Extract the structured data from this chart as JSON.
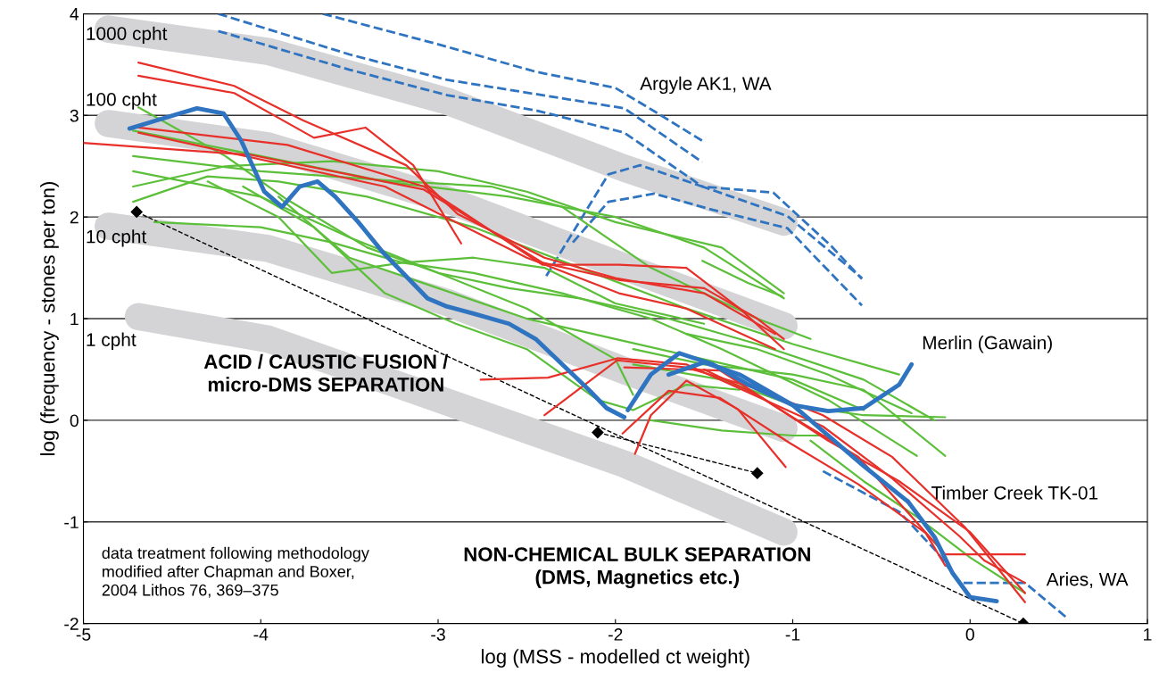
{
  "chart_data": {
    "type": "line",
    "xlabel": "log (MSS - modelled ct weight)",
    "ylabel": "log (frequency - stones per ton)",
    "xlim": [
      -5,
      1
    ],
    "xticks": [
      -5,
      -4,
      -3,
      -2,
      -1,
      0,
      1
    ],
    "ylim": [
      -2,
      4
    ],
    "yticks": [
      -2,
      -1,
      0,
      1,
      2,
      3,
      4
    ],
    "grid": "y",
    "legend": false,
    "series": [
      {
        "color": "#d4d4d6",
        "x": [
          -4.86,
          -3.96,
          -2.95,
          -1.95,
          -1.05
        ],
        "values": [
          3.85,
          3.63,
          3.14,
          2.48,
          1.95
        ]
      },
      {
        "color": "#d4d4d6",
        "x": [
          -4.86,
          -3.96,
          -2.95,
          -1.95,
          -1.05
        ],
        "values": [
          2.92,
          2.7,
          2.17,
          1.51,
          0.93
        ]
      },
      {
        "color": "#d4d4d6",
        "x": [
          -4.86,
          -3.96,
          -2.95,
          -1.95,
          -1.05
        ],
        "values": [
          1.91,
          1.69,
          1.16,
          0.49,
          -0.08
        ]
      },
      {
        "color": "#d4d4d6",
        "x": [
          -4.69,
          -3.96,
          -2.95,
          -1.95,
          -1.05
        ],
        "values": [
          1.02,
          0.8,
          0.18,
          -0.43,
          -1.1
        ]
      },
      {
        "color": "#000000",
        "line_style": "dashed",
        "marker": "diamond",
        "x": [
          -4.7,
          0.3
        ],
        "values": [
          2.05,
          -2.0
        ]
      },
      {
        "color": "#000000",
        "line_style": "dashed",
        "marker": "diamond",
        "x": [
          -2.1,
          -1.2
        ],
        "values": [
          -0.12,
          -0.52
        ]
      },
      {
        "color": "#2f74c0",
        "line_style": "dashed",
        "x": [
          -3.65,
          -3.0,
          -2.45,
          -2.0,
          -1.78,
          -1.51
        ],
        "values": [
          4.0,
          3.7,
          3.43,
          3.27,
          3.04,
          2.75
        ]
      },
      {
        "color": "#2f74c0",
        "line_style": "dashed",
        "x": [
          -4.24,
          -3.5,
          -2.95,
          -2.45,
          -1.95,
          -1.51
        ],
        "values": [
          4.0,
          3.6,
          3.35,
          3.21,
          3.07,
          2.54
        ]
      },
      {
        "color": "#2f74c0",
        "line_style": "dashed",
        "x": [
          -4.24,
          -3.5,
          -2.95,
          -2.45,
          -1.95,
          -1.51,
          -1.03,
          -0.61
        ],
        "values": [
          3.83,
          3.45,
          3.2,
          3.05,
          2.83,
          2.3,
          2.01,
          1.4
        ]
      },
      {
        "color": "#2f74c0",
        "line_style": "dashed",
        "x": [
          -2.39,
          -2.04,
          -1.86,
          -1.51,
          -1.11,
          -0.78,
          -0.61
        ],
        "values": [
          1.42,
          2.42,
          2.51,
          2.3,
          2.24,
          1.71,
          1.39
        ]
      },
      {
        "color": "#2f74c0",
        "line_style": "dashed",
        "x": [
          -2.24,
          -2.04,
          -1.78,
          -1.45,
          -1.03,
          -0.61
        ],
        "values": [
          1.75,
          2.15,
          2.23,
          2.07,
          1.89,
          1.13
        ]
      },
      {
        "color": "#2f74c0",
        "line_style": "dashed",
        "x": [
          -0.83,
          -0.4,
          -0.19,
          -0.06,
          0.31,
          0.55
        ],
        "values": [
          -0.5,
          -0.9,
          -1.29,
          -1.6,
          -1.6,
          -1.95
        ]
      },
      {
        "color": "#5cbf3a",
        "x": [
          -4.69,
          -4.2,
          -3.85,
          -3.4,
          -3.0,
          -2.5,
          -2.0,
          -1.9
        ],
        "values": [
          3.08,
          2.6,
          2.17,
          1.7,
          1.45,
          1.1,
          0.6,
          0.25
        ]
      },
      {
        "color": "#5cbf3a",
        "x": [
          -4.72,
          -4.0,
          -3.3,
          -2.6,
          -2.0,
          -1.5,
          -1.05
        ],
        "values": [
          2.85,
          2.6,
          2.35,
          2.2,
          2.0,
          1.7,
          1.2
        ]
      },
      {
        "color": "#5cbf3a",
        "x": [
          -4.72,
          -4.0,
          -3.2,
          -2.7,
          -2.3,
          -1.8,
          -1.2,
          -0.9
        ],
        "values": [
          2.6,
          2.45,
          2.35,
          2.3,
          2.1,
          1.5,
          1.0,
          0.8
        ]
      },
      {
        "color": "#5cbf3a",
        "x": [
          -4.72,
          -4.2,
          -3.6,
          -3.0,
          -2.5,
          -2.0,
          -1.4,
          -1.05
        ],
        "values": [
          2.3,
          2.5,
          2.55,
          2.45,
          2.25,
          1.95,
          1.7,
          1.25
        ]
      },
      {
        "color": "#5cbf3a",
        "x": [
          -4.72,
          -4.3,
          -3.9,
          -3.4,
          -2.8,
          -2.2,
          -1.6,
          -1.0,
          -0.4
        ],
        "values": [
          2.15,
          2.4,
          2.35,
          2.2,
          1.9,
          1.5,
          1.1,
          0.75,
          0.45
        ]
      },
      {
        "color": "#5cbf3a",
        "x": [
          -4.72,
          -4.0,
          -3.5,
          -3.0,
          -2.6,
          -2.2,
          -1.7,
          -1.2,
          -0.6,
          -0.2
        ],
        "values": [
          2.45,
          2.2,
          1.8,
          1.45,
          1.3,
          1.2,
          1.0,
          0.75,
          0.4,
          0.0
        ]
      },
      {
        "color": "#5cbf3a",
        "x": [
          -4.6,
          -4.0,
          -3.6,
          -3.2,
          -2.8,
          -2.3,
          -1.8,
          -1.4,
          -0.8,
          -0.3
        ],
        "values": [
          1.95,
          1.9,
          1.75,
          1.55,
          1.45,
          1.25,
          1.0,
          0.7,
          0.2,
          -0.35
        ]
      },
      {
        "color": "#5cbf3a",
        "x": [
          -4.3,
          -3.9,
          -3.6,
          -3.2,
          -2.8,
          -2.4,
          -2.0,
          -1.5
        ],
        "values": [
          2.35,
          2.0,
          1.45,
          1.55,
          1.6,
          1.5,
          1.15,
          0.95
        ]
      },
      {
        "color": "#5cbf3a",
        "x": [
          -4.1,
          -3.7,
          -3.3,
          -2.9,
          -2.5,
          -2.1,
          -1.9,
          -1.6,
          -1.3
        ],
        "values": [
          2.3,
          1.9,
          1.25,
          0.95,
          0.7,
          0.2,
          0.1,
          0.35,
          0.3
        ]
      },
      {
        "color": "#5cbf3a",
        "x": [
          -3.9,
          -3.5,
          -3.0,
          -2.5,
          -2.0,
          -1.5,
          -1.0,
          -0.6
        ],
        "values": [
          2.2,
          1.6,
          1.3,
          1.0,
          0.8,
          0.6,
          0.4,
          0.1
        ]
      },
      {
        "color": "#5cbf3a",
        "x": [
          -1.51,
          -1.25,
          -1.06
        ],
        "values": [
          1.57,
          1.35,
          1.22
        ]
      },
      {
        "color": "#5cbf3a",
        "x": [
          -1.9,
          -1.5,
          -1.0,
          -0.6,
          -0.14
        ],
        "values": [
          0.7,
          0.55,
          0.45,
          0.3,
          -0.35
        ]
      },
      {
        "color": "#5cbf3a",
        "x": [
          -1.9,
          -1.4,
          -1.0,
          -0.6,
          -0.14
        ],
        "values": [
          0.55,
          0.4,
          0.15,
          0.05,
          0.03
        ]
      },
      {
        "color": "#5cbf3a",
        "x": [
          -1.6,
          -1.2,
          -0.8,
          -0.33
        ],
        "values": [
          0.85,
          0.7,
          0.45,
          0.07
        ]
      },
      {
        "color": "#5cbf3a",
        "x": [
          -1.8,
          -1.4,
          -1.0,
          -0.8
        ],
        "values": [
          0.0,
          -0.1,
          -0.15,
          -0.15
        ]
      },
      {
        "color": "#5cbf3a",
        "x": [
          -0.9,
          -0.6,
          -0.3,
          0.0,
          0.31
        ],
        "values": [
          -0.2,
          -0.6,
          -0.95,
          -1.35,
          -1.7
        ]
      },
      {
        "color": "#e8302a",
        "x": [
          -4.69,
          -4.15,
          -3.76,
          -3.18,
          -2.89,
          -2.4,
          -2.0,
          -1.5,
          -1.1
        ],
        "values": [
          3.52,
          3.29,
          2.95,
          2.51,
          2.03,
          1.6,
          1.4,
          1.25,
          0.85
        ]
      },
      {
        "color": "#e8302a",
        "x": [
          -4.69,
          -4.15,
          -3.7,
          -3.41,
          -3.14,
          -2.87
        ],
        "values": [
          3.39,
          3.22,
          2.78,
          2.88,
          2.51,
          1.74
        ]
      },
      {
        "color": "#e8302a",
        "x": [
          -5.0,
          -4.05,
          -3.08,
          -2.41,
          -1.98,
          -1.5,
          -1.2,
          -1.05
        ],
        "values": [
          2.73,
          2.61,
          2.27,
          1.55,
          1.38,
          1.3,
          1.0,
          0.8
        ]
      },
      {
        "color": "#e8302a",
        "x": [
          -4.69,
          -3.85,
          -3.08,
          -2.41,
          -1.98,
          -1.6,
          -1.3,
          -1.05
        ],
        "values": [
          2.88,
          2.71,
          2.3,
          1.53,
          1.53,
          1.5,
          1.1,
          0.7
        ]
      },
      {
        "color": "#e8302a",
        "x": [
          -4.69,
          -3.3,
          -2.5,
          -1.98,
          -1.6,
          -1.1
        ],
        "values": [
          2.83,
          2.3,
          1.6,
          1.25,
          1.1,
          0.7
        ]
      },
      {
        "color": "#e8302a",
        "x": [
          -2.76,
          -2.38,
          -1.99,
          -1.6,
          -1.22,
          -0.83,
          -0.44,
          -0.06,
          0.08,
          0.31
        ],
        "values": [
          0.4,
          0.42,
          0.61,
          0.55,
          0.25,
          -0.06,
          -0.57,
          -1.14,
          -1.38,
          -1.6
        ]
      },
      {
        "color": "#e8302a",
        "x": [
          -2.4,
          -1.99,
          -1.6,
          -1.22,
          -0.83,
          -0.44,
          -0.03,
          0.31
        ],
        "values": [
          0.05,
          0.59,
          0.52,
          0.32,
          0.05,
          -0.36,
          -1.05,
          -1.79
        ]
      },
      {
        "color": "#e8302a",
        "x": [
          -1.89,
          -1.8,
          -1.6,
          -1.31,
          -1.04
        ],
        "values": [
          -0.33,
          0.05,
          0.39,
          0.11,
          -0.46
        ]
      },
      {
        "color": "#e8302a",
        "x": [
          -1.96,
          -1.7,
          -1.41,
          -1.02,
          -0.63,
          -0.25,
          -0.14
        ],
        "values": [
          -0.13,
          0.29,
          0.22,
          -0.22,
          -0.63,
          -1.11,
          -1.43
        ]
      },
      {
        "color": "#e8302a",
        "x": [
          -1.95,
          -1.41,
          -1.02,
          -0.63,
          -0.14,
          0.15,
          0.31
        ],
        "values": [
          0.52,
          0.49,
          0.05,
          -0.36,
          -1.32,
          -1.32,
          -1.32
        ]
      },
      {
        "color": "#e8302a",
        "x": [
          -1.5,
          -1.2,
          -0.8,
          -0.4,
          0.0,
          0.31
        ],
        "values": [
          0.5,
          0.25,
          -0.2,
          -0.6,
          -1.1,
          -1.7
        ]
      },
      {
        "color": "#2f74c0",
        "x": [
          -4.74,
          -4.59,
          -4.36,
          -4.21,
          -4.11,
          -3.98,
          -3.88,
          -3.78,
          -3.68,
          -3.58,
          -3.45,
          -3.31,
          -3.16,
          -3.06,
          -2.95,
          -2.8,
          -2.6,
          -2.45,
          -2.3,
          -2.15,
          -2.05,
          -1.95
        ],
        "values": [
          2.87,
          2.95,
          3.07,
          3.02,
          2.75,
          2.25,
          2.1,
          2.3,
          2.35,
          2.2,
          1.95,
          1.65,
          1.38,
          1.2,
          1.12,
          1.05,
          0.95,
          0.8,
          0.55,
          0.3,
          0.12,
          0.03
        ]
      },
      {
        "color": "#2f74c0",
        "x": [
          -1.93,
          -1.8,
          -1.64,
          -1.45,
          -1.25,
          -1.0,
          -0.8,
          -0.6,
          -0.4,
          -0.33
        ],
        "values": [
          0.1,
          0.45,
          0.66,
          0.55,
          0.35,
          0.15,
          0.09,
          0.12,
          0.35,
          0.55
        ]
      },
      {
        "color": "#2f74c0",
        "x": [
          -1.7,
          -1.5,
          -1.3,
          -1.0,
          -0.8,
          -0.6,
          -0.35,
          -0.2,
          -0.1,
          0.0,
          0.15
        ],
        "values": [
          0.45,
          0.57,
          0.45,
          0.15,
          -0.15,
          -0.45,
          -0.8,
          -1.15,
          -1.5,
          -1.74,
          -1.78
        ]
      }
    ],
    "annotations": [
      "1000 cpht",
      "100 cpht",
      "10 cpht",
      "1 cpht",
      "Argyle AK1, WA",
      "Merlin (Gawain)",
      {
        "text": "Timber Creek TK-01",
        "x": -0.22,
        "y": -0.73
      },
      "Aries, WA",
      "ACID / CAUSTIC FUSION /\nmicro-DMS SEPARATION",
      "NON-CHEMICAL BULK SEPARATION\n(DMS, Magnetics etc.)",
      "data treatment following methodology\nmodified after Chapman and Boxer,\n2004 Lithos 76, 369–375"
    ]
  }
}
